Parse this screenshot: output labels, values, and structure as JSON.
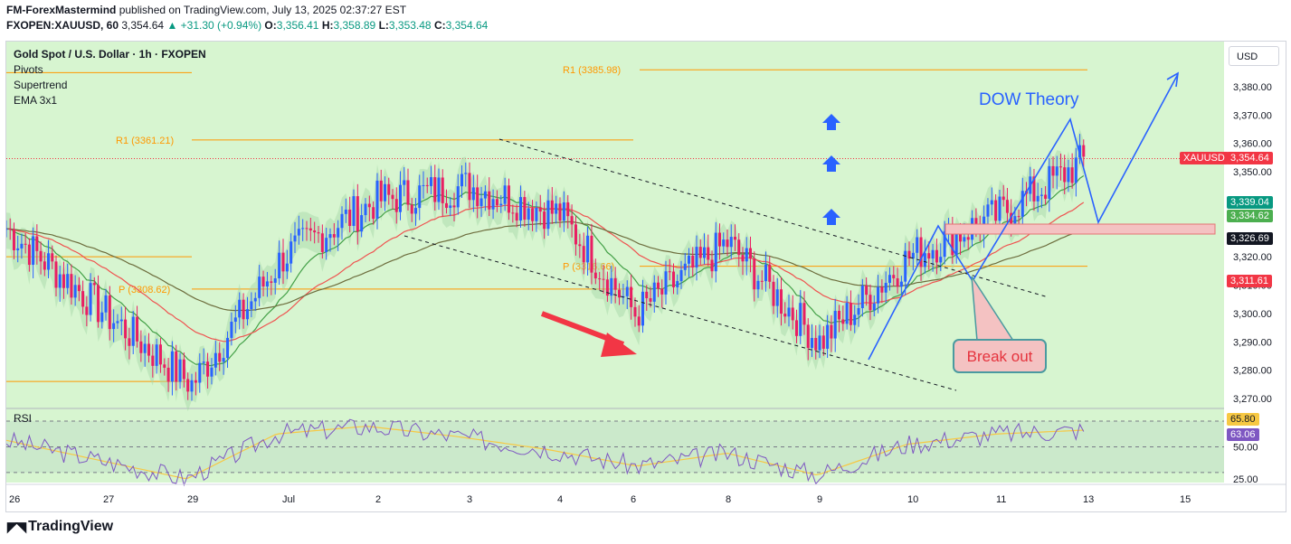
{
  "header": {
    "publisher": "FM-ForexMastermind",
    "published_text": "published on TradingView.com, July 13, 2025 02:37:27 EST",
    "symbol_line": "FXOPEN:XAUUSD, 60",
    "last_price": "3,354.64",
    "change": "+31.30 (+0.94%)",
    "o_label": "O:",
    "o": "3,356.41",
    "h_label": "H:",
    "h": "3,358.89",
    "l_label": "L:",
    "l": "3,353.48",
    "c_label": "C:",
    "c": "3,354.64"
  },
  "legend": {
    "title": "Gold Spot / U.S. Dollar · 1h · FXOPEN",
    "items": [
      "Pivots",
      "Supertrend",
      "EMA 3x1"
    ]
  },
  "price_scale": {
    "currency": "USD",
    "ticks": [
      "3,380.00",
      "3,370.00",
      "3,360.00",
      "3,350.00",
      "3,320.00",
      "3,310.00",
      "3,300.00",
      "3,290.00",
      "3,280.00",
      "3,270.00"
    ],
    "tick_values": [
      3380,
      3370,
      3360,
      3350,
      3320,
      3310,
      3300,
      3290,
      3280,
      3270
    ]
  },
  "price_tags": [
    {
      "label": "XAUUSD",
      "value": "3,354.64",
      "color": "#f23645"
    },
    {
      "value": "3,339.04",
      "color": "#089981"
    },
    {
      "value": "3,334.62",
      "color": "#4caf50"
    },
    {
      "value": "3,326.69",
      "color": "#131722"
    },
    {
      "value": "3,311.61",
      "color": "#f23645"
    }
  ],
  "rsi": {
    "label": "RSI",
    "ticks": [
      "50.00",
      "25.00"
    ],
    "tags": [
      {
        "value": "65.80",
        "color": "#f7c843",
        "text": "#131722"
      },
      {
        "value": "63.06",
        "color": "#7e57c2",
        "text": "#ffffff"
      }
    ]
  },
  "time_axis": [
    "26",
    "27",
    "29",
    "Jul",
    "2",
    "3",
    "4",
    "6",
    "8",
    "9",
    "10",
    "11",
    "13",
    "15"
  ],
  "pivots": [
    {
      "label": "R1 (3385.98)",
      "value": 3385.98
    },
    {
      "label": "R1 (3361.21)",
      "value": 3361.21
    },
    {
      "label": "P (3316.66)",
      "value": 3316.66
    },
    {
      "label": "P (3308.62)",
      "value": 3308.62
    }
  ],
  "annotations": {
    "dow_theory": "DOW Theory",
    "break_out": "Break out"
  },
  "colors": {
    "background_green": "#d7f5d0",
    "candle_up": "#2962ff",
    "candle_down": "#e91e63",
    "pivot_orange": "#ff9800",
    "supertrend_up": "#a5d6a7",
    "supertrend_down": "#d7ba9e",
    "ema_green": "#43a047",
    "ema_red": "#ef5350",
    "ema_dark": "#6d6d3d",
    "annotation_blue": "#2962ff",
    "arrow_red": "#f23645"
  },
  "chart_data": {
    "type": "candlestick",
    "symbol": "XAUUSD",
    "timeframe": "1h",
    "x": [
      "26",
      "27",
      "29",
      "Jul",
      "2",
      "3",
      "4",
      "6",
      "8",
      "9",
      "10",
      "11",
      "13"
    ],
    "close": [
      3330,
      3300,
      3275,
      3320,
      3340,
      3345,
      3335,
      3300,
      3325,
      3290,
      3320,
      3335,
      3354.64
    ],
    "high": [
      3345,
      3310,
      3300,
      3355,
      3355,
      3365,
      3345,
      3320,
      3345,
      3305,
      3330,
      3350,
      3368
    ],
    "low": [
      3315,
      3280,
      3270,
      3300,
      3330,
      3330,
      3320,
      3295,
      3310,
      3284,
      3310,
      3320,
      3340
    ],
    "ylim": [
      3265,
      3390
    ],
    "pivot_levels": [
      3385.98,
      3361.21,
      3316.66,
      3308.62
    ],
    "current_price": 3354.64,
    "rsi_values": [
      55,
      40,
      25,
      60,
      66,
      58,
      48,
      35,
      45,
      28,
      52,
      60,
      63.06
    ],
    "rsi_ma": 65.8
  }
}
